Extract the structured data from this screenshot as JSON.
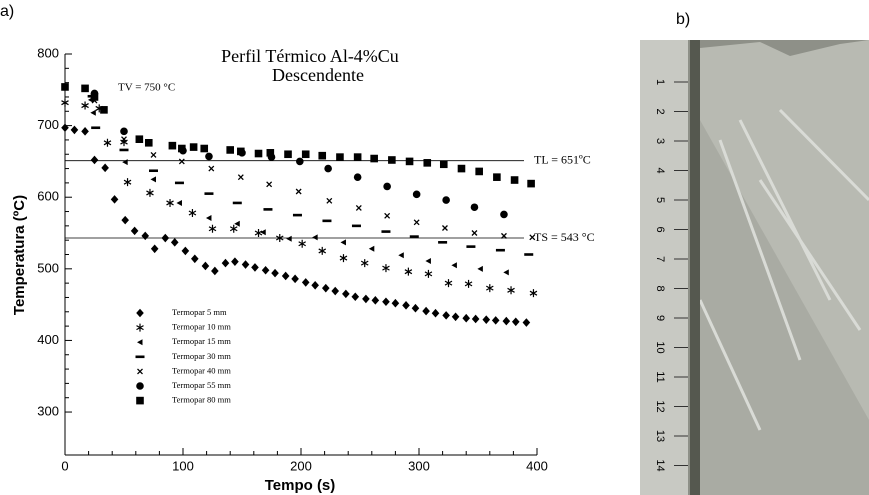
{
  "chart_data": {
    "type": "scatter",
    "panel_labels": [
      "a)",
      "b)"
    ],
    "title": "Perfil Térmico Al-4%Cu",
    "subtitle": "Descendente",
    "x_label": "Tempo (s)",
    "y_label": "Temperatura (ºC)",
    "xlim": [
      0,
      400
    ],
    "xticks": [
      0,
      100,
      200,
      300,
      400
    ],
    "ylim": [
      240,
      800
    ],
    "yticks": [
      300,
      400,
      500,
      600,
      700,
      800
    ],
    "annotations": [
      "TV = 750 °C"
    ],
    "hlines": [
      {
        "value": 651,
        "label": "TL = 651ºC"
      },
      {
        "value": 543,
        "label": "TS = 543 °C"
      }
    ],
    "legend": "lower left",
    "series": [
      {
        "name": "Termopar 5 mm",
        "marker": "diamond",
        "color": "#000000",
        "x": [
          0,
          8,
          17,
          25,
          34,
          42,
          51,
          59,
          68,
          76,
          85,
          93,
          102,
          110,
          119,
          127,
          136,
          144,
          153,
          161,
          170,
          178,
          187,
          195,
          204,
          212,
          221,
          229,
          238,
          246,
          255,
          263,
          272,
          280,
          289,
          297,
          306,
          314,
          323,
          331,
          340,
          348,
          357,
          365,
          374,
          382,
          391
        ],
        "y": [
          697,
          694,
          692,
          652,
          641,
          597,
          568,
          553,
          546,
          528,
          543,
          537,
          525,
          514,
          504,
          497,
          508,
          510,
          506,
          502,
          498,
          494,
          490,
          486,
          481,
          477,
          473,
          469,
          465,
          461,
          458,
          456,
          454,
          452,
          449,
          445,
          441,
          438,
          435,
          433,
          431,
          430,
          429,
          428,
          427,
          426,
          425
        ]
      },
      {
        "name": "Termopar 10 mm",
        "marker": "asterisk",
        "color": "#000000",
        "x": [
          0,
          17,
          29,
          36,
          50,
          53,
          72,
          89,
          108,
          125,
          143,
          164,
          182,
          201,
          218,
          236,
          254,
          272,
          291,
          308,
          325,
          342,
          360,
          378,
          397
        ],
        "y": [
          732,
          728,
          724,
          676,
          677,
          621,
          606,
          592,
          578,
          556,
          556,
          550,
          543,
          535,
          525,
          515,
          508,
          501,
          496,
          493,
          480,
          479,
          473,
          470,
          466
        ]
      },
      {
        "name": "Termopar 15 mm",
        "marker": "triangle-left",
        "color": "#000000",
        "x": [
          22,
          24,
          51,
          75,
          97,
          122,
          146,
          168,
          190,
          212,
          236,
          260,
          285,
          308,
          330,
          352,
          374
        ],
        "y": [
          736,
          718,
          649,
          625,
          592,
          571,
          563,
          551,
          542,
          544,
          537,
          528,
          519,
          511,
          505,
          500,
          495
        ]
      },
      {
        "name": "Termopar 30 mm",
        "marker": "dash",
        "color": "#000000",
        "x": [
          23,
          26,
          50,
          75,
          97,
          122,
          146,
          172,
          197,
          222,
          247,
          272,
          296,
          320,
          344,
          369,
          393
        ],
        "y": [
          741,
          697,
          666,
          637,
          620,
          605,
          592,
          583,
          575,
          567,
          560,
          552,
          545,
          537,
          531,
          526,
          520
        ]
      },
      {
        "name": "Termopar 40 mm",
        "marker": "x",
        "color": "#000000",
        "x": [
          25,
          50,
          75,
          99,
          124,
          149,
          173,
          198,
          224,
          249,
          273,
          298,
          322,
          347,
          372,
          396
        ],
        "y": [
          735,
          681,
          659,
          650,
          640,
          628,
          618,
          608,
          595,
          585,
          574,
          565,
          557,
          550,
          546,
          544
        ]
      },
      {
        "name": "Termopar 55 mm",
        "marker": "circle",
        "color": "#000000",
        "x": [
          25,
          50,
          100,
          122,
          150,
          175,
          199,
          223,
          248,
          273,
          298,
          323,
          347,
          372
        ],
        "y": [
          745,
          692,
          665,
          657,
          662,
          656,
          650,
          640,
          628,
          615,
          604,
          596,
          586,
          576
        ]
      },
      {
        "name": "Termopar 80 mm",
        "marker": "square",
        "color": "#000000",
        "x": [
          0,
          17,
          25,
          33,
          63,
          71,
          91,
          99,
          109,
          118,
          140,
          149,
          164,
          174,
          189,
          204,
          218,
          233,
          248,
          262,
          277,
          292,
          307,
          321,
          336,
          351,
          366,
          381,
          395
        ],
        "y": [
          754,
          752,
          740,
          722,
          681,
          676,
          672,
          668,
          670,
          668,
          666,
          664,
          661,
          662,
          660,
          660,
          658,
          656,
          656,
          654,
          652,
          650,
          648,
          646,
          640,
          636,
          628,
          624,
          619
        ]
      }
    ],
    "photo": {
      "ruler_labels": [
        "1",
        "2",
        "3",
        "4",
        "5",
        "6",
        "7",
        "8",
        "9",
        "10",
        "11",
        "12",
        "13",
        "14"
      ]
    }
  }
}
